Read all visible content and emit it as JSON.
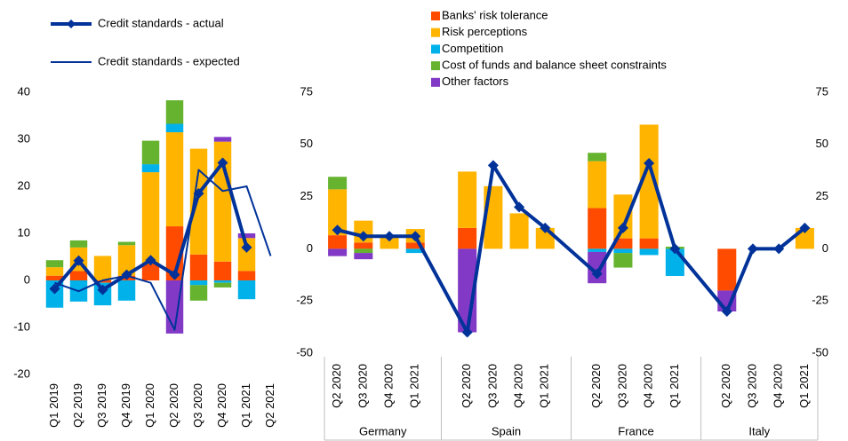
{
  "chart_data": [
    {
      "type": "bar",
      "stacked": true,
      "categories": [
        "Q1 2019",
        "Q2 2019",
        "Q3 2019",
        "Q4 2019",
        "Q1 2020",
        "Q2 2020",
        "Q3 2020",
        "Q4 2020",
        "Q1 2021",
        "Q2 2021"
      ],
      "ylim": [
        -20,
        40
      ],
      "yticks": [
        -20,
        -10,
        0,
        10,
        20,
        30,
        40
      ],
      "series": [
        {
          "color": "#ff4b00",
          "values": [
            1,
            2,
            -0.5,
            1,
            3.5,
            11.5,
            5.5,
            4,
            2,
            0
          ]
        },
        {
          "color": "#ffb400",
          "values": [
            1.8,
            5,
            5.2,
            6.5,
            19.5,
            20,
            22.5,
            25.5,
            7,
            0
          ]
        },
        {
          "color": "#00b1ea",
          "values": [
            -5.8,
            -4.5,
            -4.8,
            -4.3,
            1.7,
            1.8,
            -1,
            -0.5,
            -4,
            0
          ]
        },
        {
          "color": "#65b32e",
          "values": [
            1.5,
            1.5,
            0,
            0.7,
            5,
            5,
            -3.3,
            -1,
            0,
            0
          ]
        },
        {
          "color": "#8139c6",
          "values": [
            0,
            0,
            0,
            0,
            0,
            -11.3,
            0,
            1,
            1,
            0
          ]
        },
        {
          "name": "Credit standards - actual",
          "type": "line",
          "marker": "diamond",
          "color": "#003299",
          "values": [
            -1.8,
            4.2,
            -2,
            1.2,
            4.3,
            1.2,
            18.5,
            25,
            7,
            null
          ]
        },
        {
          "name": "Credit standards - expected",
          "type": "line",
          "color": "#003299",
          "values": [
            -0.5,
            -2.3,
            0,
            1,
            -0.5,
            -10.5,
            23.5,
            19,
            20,
            5.2
          ]
        }
      ]
    },
    {
      "type": "bar",
      "stacked": true,
      "categories": [
        "Q2 2020",
        "Q3 2020",
        "Q4 2020",
        "Q1 2021",
        "Q2 2020",
        "Q3 2020",
        "Q4 2020",
        "Q1 2021",
        "Q2 2020",
        "Q3 2020",
        "Q4 2020",
        "Q1 2021",
        "Q2 2020",
        "Q3 2020",
        "Q4 2020",
        "Q1 2021"
      ],
      "groups": [
        "Germany",
        "Spain",
        "France",
        "Italy"
      ],
      "ylim": [
        -50,
        75
      ],
      "yticks": [
        -50,
        -25,
        0,
        25,
        50,
        75
      ],
      "y2lim": [
        -50,
        75
      ],
      "y2ticks": [
        -50,
        -25,
        0,
        25,
        50,
        75
      ],
      "series": [
        {
          "name": "Banks' risk tolerance",
          "color": "#ff4b00",
          "values": [
            6.5,
            3,
            0,
            3,
            10,
            0,
            0,
            0,
            19.5,
            5,
            5,
            0,
            -20,
            0,
            0,
            0
          ]
        },
        {
          "name": "Risk perceptions",
          "color": "#ffb400",
          "values": [
            22,
            10.5,
            6,
            6.5,
            27,
            30,
            17,
            10,
            22.5,
            21,
            54.5,
            0,
            0,
            0,
            0,
            10
          ]
        },
        {
          "name": "Competition",
          "color": "#00b1ea",
          "values": [
            0,
            0,
            0,
            -2,
            0,
            0,
            0,
            0,
            -1.5,
            -2,
            -3,
            -13,
            0,
            0,
            0,
            0
          ]
        },
        {
          "name": "Cost of funds and balance sheet constraints",
          "color": "#65b32e",
          "values": [
            6,
            -2,
            0,
            0,
            0,
            0,
            0,
            0,
            4,
            -7,
            0,
            1,
            0,
            0,
            0,
            0
          ]
        },
        {
          "name": "Other factors",
          "color": "#8139c6",
          "values": [
            -3.5,
            -3,
            0,
            0,
            -40,
            0,
            0,
            0,
            -15,
            0,
            0,
            0,
            -10,
            0,
            0,
            0
          ]
        },
        {
          "type": "line",
          "marker": "diamond",
          "color": "#003299",
          "values": [
            9,
            6,
            6,
            6,
            -40,
            40,
            20,
            10,
            -12,
            10,
            41,
            0,
            -30,
            0,
            0,
            10
          ]
        }
      ]
    }
  ]
}
